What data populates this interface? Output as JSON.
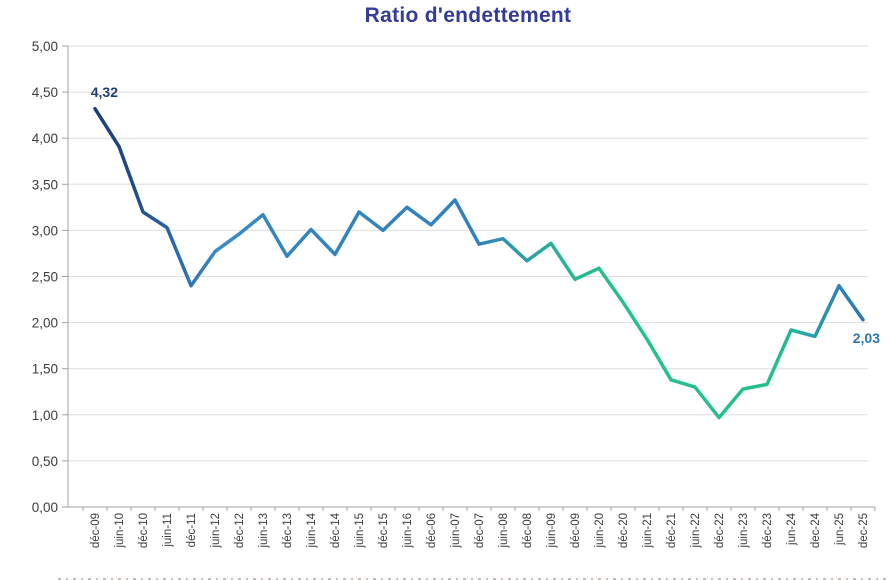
{
  "chart_data": {
    "type": "line",
    "title": "Ratio d'endettement",
    "categories": [
      "déc-09",
      "juin-10",
      "déc-10",
      "juin-11",
      "déc-11",
      "juin-12",
      "déc-12",
      "juin-13",
      "déc-13",
      "juin-14",
      "déc-14",
      "juin-15",
      "déc-15",
      "juin-16",
      "déc-06",
      "juin-07",
      "déc-07",
      "juin-08",
      "déc-08",
      "juin-09",
      "déc-09",
      "juin-20",
      "déc-20",
      "juin-21",
      "déc-21",
      "juin-22",
      "déc-22",
      "juin-23",
      "déc-23",
      "jun-24",
      "dec-24",
      "jun-25",
      "dec-25"
    ],
    "values": [
      4.32,
      3.91,
      3.2,
      3.03,
      2.4,
      2.77,
      2.96,
      3.17,
      2.72,
      3.01,
      2.74,
      3.2,
      3.0,
      3.25,
      3.06,
      3.33,
      2.85,
      2.91,
      2.67,
      2.86,
      2.47,
      2.59,
      2.22,
      1.82,
      1.38,
      1.3,
      0.97,
      1.28,
      1.33,
      1.92,
      1.85,
      2.4,
      2.03
    ],
    "xlabel": "",
    "ylabel": "",
    "ylim": [
      0,
      5
    ],
    "ytick_step": 0.5,
    "ytick_labels": [
      "0,00",
      "0,50",
      "1,00",
      "1,50",
      "2,00",
      "2,50",
      "3,00",
      "3,50",
      "4,00",
      "4,50",
      "5,00"
    ],
    "grid": true,
    "legend": "none",
    "annotations": {
      "first_point_label": "4,32",
      "last_point_label": "2,03"
    },
    "colors": {
      "title": "#333c99",
      "gridline": "#dedede",
      "axis_line": "#a3a3a3",
      "tick_text": "#3d3d3d",
      "first_label": "#1f3d7a",
      "last_label": "#2e75b6",
      "line_gradient_stops": [
        {
          "offset": 0.0,
          "color": "#1c3e7d"
        },
        {
          "offset": 0.04,
          "color": "#1f4787"
        },
        {
          "offset": 0.1,
          "color": "#2a66a6"
        },
        {
          "offset": 0.16,
          "color": "#3a8cc4"
        },
        {
          "offset": 0.25,
          "color": "#3484bd"
        },
        {
          "offset": 0.5,
          "color": "#3182bd"
        },
        {
          "offset": 0.56,
          "color": "#2da0a8"
        },
        {
          "offset": 0.62,
          "color": "#28b695"
        },
        {
          "offset": 0.67,
          "color": "#25c08c"
        },
        {
          "offset": 0.885,
          "color": "#25c08c"
        },
        {
          "offset": 0.93,
          "color": "#2aa2a9"
        },
        {
          "offset": 0.965,
          "color": "#2d84b6"
        },
        {
          "offset": 1.0,
          "color": "#2e75b6"
        }
      ]
    }
  }
}
